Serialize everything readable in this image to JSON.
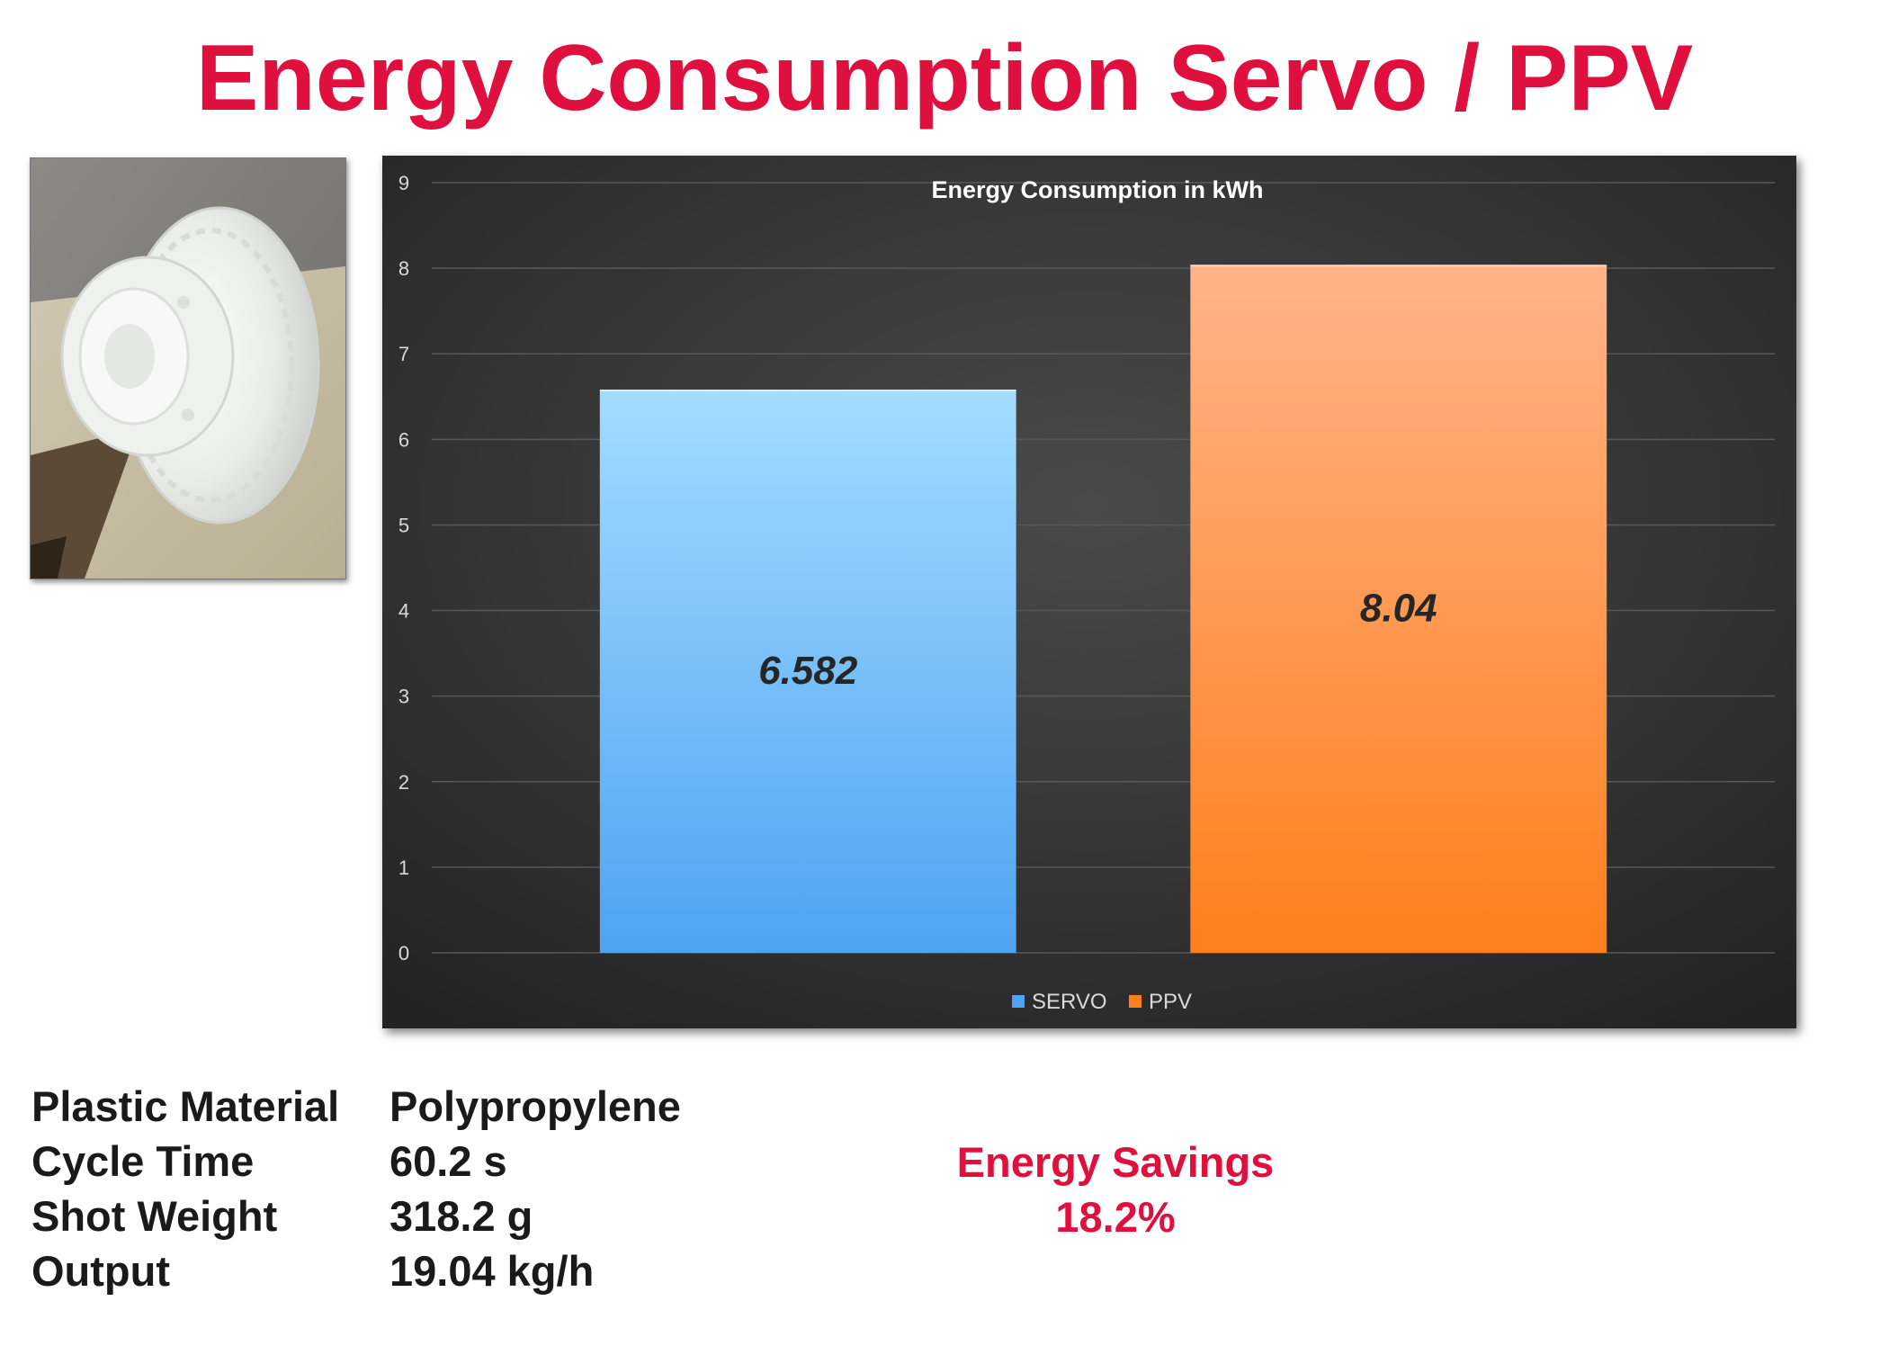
{
  "page": {
    "title": "Energy Consumption Servo / PPV"
  },
  "photo": {
    "subject": "molded-plastic-part"
  },
  "chart_data": {
    "type": "bar",
    "title": "Energy Consumption in kWh",
    "categories": [
      "SERVO",
      "PPV"
    ],
    "values": [
      6.582,
      8.04
    ],
    "data_labels": [
      "6.582",
      "8.04"
    ],
    "ylim": [
      0,
      9
    ],
    "yticks": [
      "0",
      "1",
      "2",
      "3",
      "4",
      "5",
      "6",
      "7",
      "8",
      "9"
    ],
    "grid": true,
    "legend": "bottom",
    "colors": {
      "SERVO": [
        "#a3dcff",
        "#4ea3f2"
      ],
      "PPV": [
        "#ffb488",
        "#ff7f1c"
      ],
      "background": "#262626"
    }
  },
  "specs": [
    {
      "label": "Plastic Material",
      "value": "Polypropylene"
    },
    {
      "label": "Cycle Time",
      "value": "60.2 s"
    },
    {
      "label": "Shot Weight",
      "value": "318.2 g"
    },
    {
      "label": "Output",
      "value": "19.04 kg/h"
    }
  ],
  "savings": {
    "label": "Energy Savings",
    "value": "18.2%"
  }
}
